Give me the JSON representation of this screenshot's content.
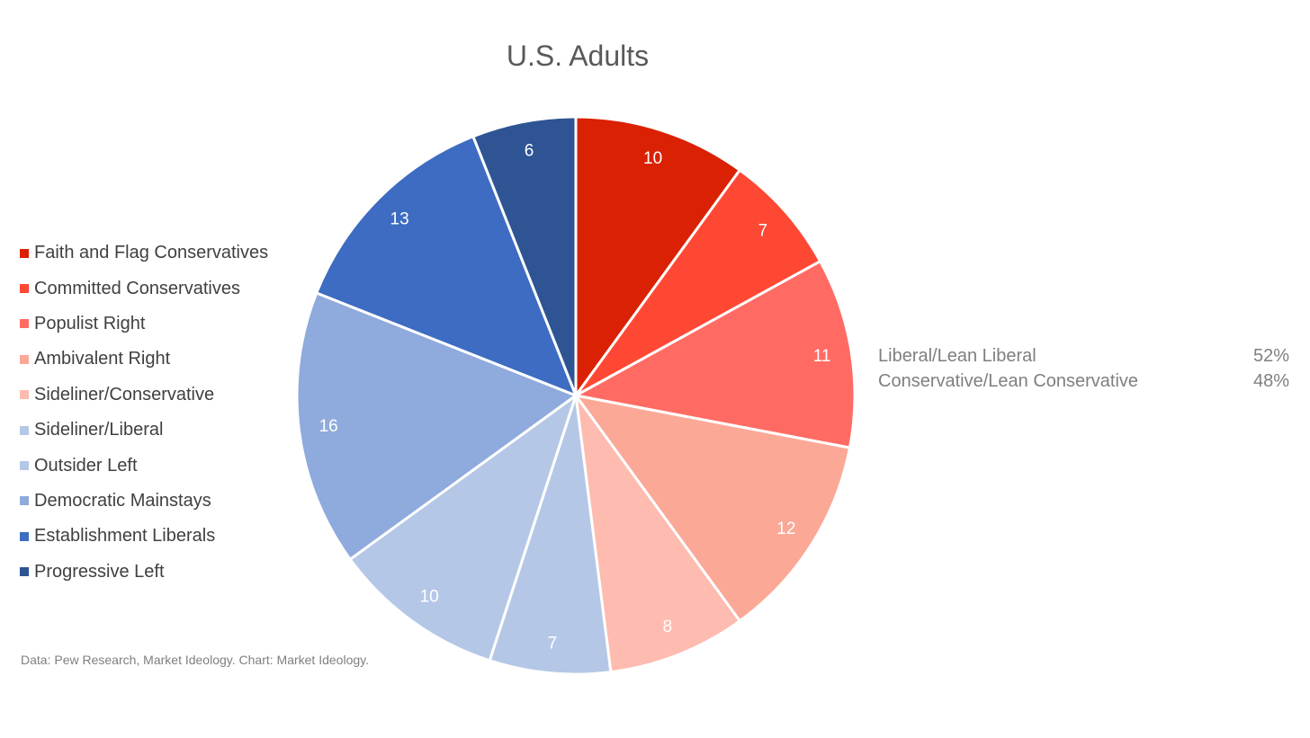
{
  "chart_data": {
    "type": "pie",
    "title": "U.S. Adults",
    "categories": [
      "Faith and Flag Conservatives",
      "Committed Conservatives",
      "Populist Right",
      "Ambivalent Right",
      "Sideliner/Conservative",
      "Sideliner/Liberal",
      "Outsider Left",
      "Democratic Mainstays",
      "Establishment Liberals",
      "Progressive Left"
    ],
    "values": [
      10,
      7,
      11,
      12,
      8,
      7,
      10,
      16,
      13,
      6
    ],
    "colors": [
      "#DA2103",
      "#FF4834",
      "#FF6B63",
      "#FBA897",
      "#FEBBAF",
      "#B4C7E7",
      "#B4C7E7",
      "#8FAADC",
      "#3D6CC2",
      "#2E5493"
    ],
    "data_labels": [
      "10",
      "7",
      "11",
      "12",
      "8",
      "7",
      "10",
      "16",
      "13",
      "6"
    ],
    "legend_position": "left",
    "start_angle_deg": 0,
    "direction": "clockwise"
  },
  "summary": {
    "rows": [
      {
        "label": "Liberal/Lean Liberal",
        "value": "52%"
      },
      {
        "label": "Conservative/Lean Conservative",
        "value": "48%"
      }
    ]
  },
  "source_note": "Data: Pew Research, Market Ideology. Chart: Market Ideology."
}
